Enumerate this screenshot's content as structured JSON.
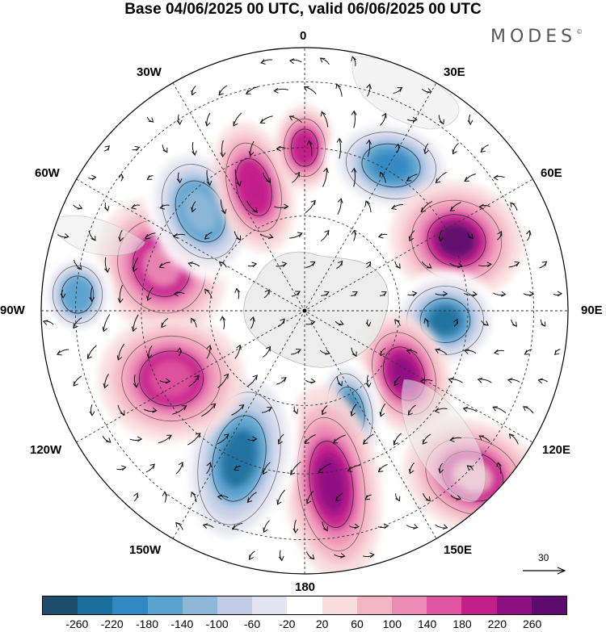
{
  "title": "Base 04/06/2025 00 UTC, valid 06/06/2025 00 UTC",
  "brand": "MODES",
  "brand_mark": "©",
  "longitude_labels": {
    "top": "0",
    "top_right": "30E",
    "right_upper": "60E",
    "right": "90E",
    "right_lower": "120E",
    "bottom_right": "150E",
    "bottom": "180",
    "bottom_left": "150W",
    "left_lower": "120W",
    "left": "90W",
    "left_upper": "60W",
    "top_left": "30W"
  },
  "reference_vector": "30",
  "colorbar": {
    "colors": [
      "#1c4d6b",
      "#1a6e9c",
      "#3188c2",
      "#5ba3cf",
      "#8fb8d8",
      "#c2cde5",
      "#e4e4f0",
      "#ffffff",
      "#f9dcdc",
      "#f4b5c3",
      "#ec8cb5",
      "#e0559f",
      "#c21f8a",
      "#8d1182",
      "#5c0c6e"
    ],
    "labels": [
      "-260",
      "-220",
      "-180",
      "-140",
      "-100",
      "-60",
      "-20",
      "20",
      "60",
      "100",
      "140",
      "180",
      "220",
      "260"
    ]
  },
  "map": {
    "projection": "south polar stereographic",
    "land_color": "#ebebeb",
    "features": [
      {
        "sign": "pos",
        "level": "100"
      },
      {
        "sign": "neg",
        "level": "-140"
      },
      {
        "sign": "pos",
        "level": "180"
      },
      {
        "sign": "pos",
        "level": "200"
      },
      {
        "sign": "neg",
        "level": "-220"
      },
      {
        "sign": "pos",
        "level": "260"
      },
      {
        "sign": "neg",
        "level": "-260"
      },
      {
        "sign": "pos",
        "level": "240"
      },
      {
        "sign": "neg",
        "level": "-240"
      },
      {
        "sign": "pos",
        "level": "240"
      },
      {
        "sign": "neg",
        "level": "-260"
      },
      {
        "sign": "pos",
        "level": "160"
      },
      {
        "sign": "neg",
        "level": "-160"
      },
      {
        "sign": "pos",
        "level": "60"
      }
    ]
  }
}
